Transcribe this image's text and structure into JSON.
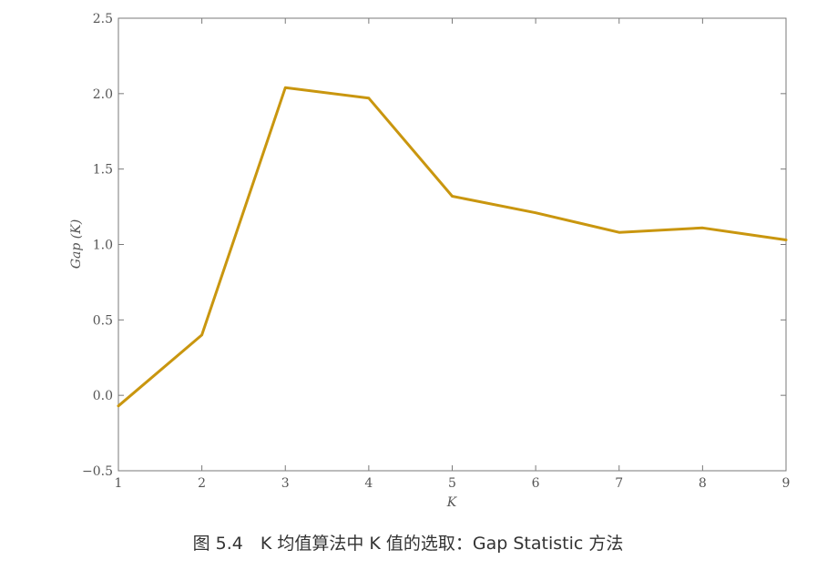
{
  "chart_data": {
    "type": "line",
    "title": "",
    "xlabel": "K",
    "ylabel": "Gap (K)",
    "x": [
      1,
      2,
      3,
      4,
      5,
      6,
      7,
      8,
      9
    ],
    "series": [
      {
        "values": [
          -0.07,
          0.4,
          2.04,
          1.97,
          1.32,
          1.21,
          1.08,
          1.11,
          1.03
        ]
      }
    ],
    "xlim": [
      1,
      9
    ],
    "ylim": [
      -0.5,
      2.5
    ],
    "x_ticks": [
      1,
      2,
      3,
      4,
      5,
      6,
      7,
      8,
      9
    ],
    "y_ticks": [
      -0.5,
      0.0,
      0.5,
      1.0,
      1.5,
      2.0,
      2.5
    ],
    "y_tick_labels": [
      "−0.5",
      "0.0",
      "0.5",
      "1.0",
      "1.5",
      "2.0",
      "2.5"
    ],
    "grid": false,
    "line_color": "#c9960f"
  },
  "caption": "图 5.4　K 均值算法中 K 值的选取：Gap Statistic 方法"
}
